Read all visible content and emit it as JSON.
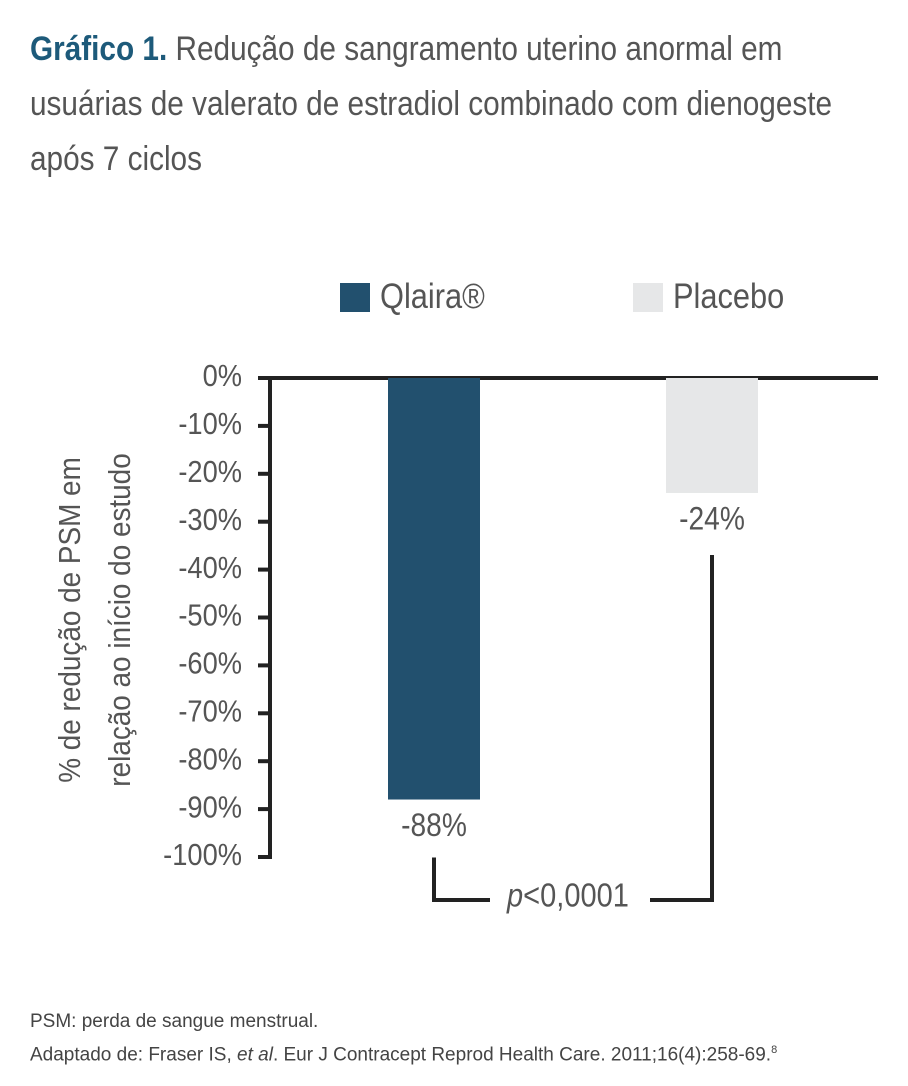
{
  "chart_data": {
    "type": "bar",
    "title_label": "Gráfico 1.",
    "title": "Redução de sangramento uterino anormal em usuárias de valerato de estradiol combinado com dienogeste após 7 ciclos",
    "ylabel": [
      "% de redução de PSM em",
      "relação ao início do estudo"
    ],
    "series": [
      {
        "name": "Qlaira®",
        "color": "#22506e",
        "values": [
          -88
        ],
        "value_labels": [
          "-88%"
        ]
      },
      {
        "name": "Placebo",
        "color": "#e6e7e8",
        "values": [
          -24
        ],
        "value_labels": [
          "-24%"
        ]
      }
    ],
    "ylim": [
      -100,
      0
    ],
    "yticks": [
      {
        "value": 0,
        "label": "0%"
      },
      {
        "value": -10,
        "label": "-10%"
      },
      {
        "value": -20,
        "label": "-20%"
      },
      {
        "value": -30,
        "label": "-30%"
      },
      {
        "value": -40,
        "label": "-40%"
      },
      {
        "value": -50,
        "label": "-50%"
      },
      {
        "value": -60,
        "label": "-60%"
      },
      {
        "value": -70,
        "label": "-70%"
      },
      {
        "value": -80,
        "label": "-80%"
      },
      {
        "value": -90,
        "label": "-90%"
      },
      {
        "value": -100,
        "label": "-100%"
      }
    ],
    "annotation": [
      "p",
      "<0,0001"
    ],
    "notes": [
      "PSM: perda de sangue menstrual.",
      [
        "Adaptado de: Fraser IS, ",
        "et al",
        ". Eur J Contracept Reprod Health Care. 2011;16(4):258-69.",
        "8"
      ]
    ]
  }
}
